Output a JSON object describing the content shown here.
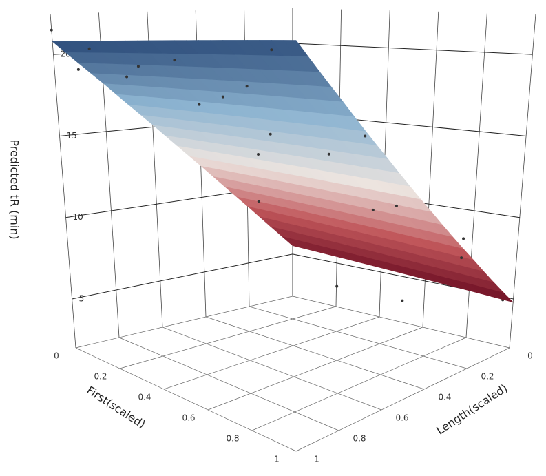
{
  "chart_data": {
    "type": "surface3d",
    "zaxis_title": "Predicted tR (min)",
    "xaxis_title": "First(scaled)",
    "yaxis_title": "Length(scaled)",
    "xlim": [
      0,
      1
    ],
    "ylim": [
      0,
      1
    ],
    "zlim": [
      2,
      22.5
    ],
    "xticks": [
      0,
      0.2,
      0.4,
      0.6,
      0.8,
      1
    ],
    "yticks": [
      0,
      0.2,
      0.4,
      0.6,
      0.8,
      1
    ],
    "zticks": [
      5,
      10,
      15,
      20
    ],
    "surface": {
      "x": [
        0,
        0.2,
        0.4,
        0.6,
        0.8,
        1
      ],
      "y": [
        0,
        0.2,
        0.4,
        0.6,
        0.8,
        1
      ],
      "z": [
        [
          5.6,
          8.93,
          12.11,
          15.15,
          18.05,
          20.8
        ],
        [
          5.44,
          8.79,
          11.99,
          15.05,
          17.97,
          20.74
        ],
        [
          5.28,
          8.65,
          11.87,
          14.95,
          17.89,
          20.68
        ],
        [
          5.12,
          8.51,
          11.75,
          14.85,
          17.81,
          20.62
        ],
        [
          4.96,
          8.37,
          11.63,
          14.75,
          17.73,
          20.56
        ],
        [
          4.8,
          8.23,
          11.51,
          14.65,
          17.65,
          20.5
        ]
      ],
      "colorscale": [
        "#6e0f24",
        "#c0565a",
        "#ece4df",
        "#8db4d1",
        "#2a4a78"
      ]
    },
    "points": {
      "color": "#333333",
      "x": [
        0,
        0,
        0.1,
        0.1,
        0.2,
        0.2,
        0.3,
        0.3,
        0.4,
        0.4,
        0.5,
        0.5,
        0.6,
        0.6,
        0.7,
        0.7,
        0.8,
        0.8,
        0.9,
        0.9,
        1,
        1,
        0.15,
        0.35,
        0.55,
        0.75,
        0.95,
        0.25,
        0.45,
        0.65,
        0.85,
        0.05
      ],
      "y": [
        1,
        0.9,
        0.8,
        0.95,
        0.6,
        0.85,
        0.7,
        0.5,
        0.9,
        0.3,
        0.6,
        0.4,
        0.8,
        0.2,
        0.55,
        0.1,
        0.7,
        0.35,
        0.15,
        0.5,
        0.05,
        0.25,
        0.3,
        0.15,
        0.05,
        0.9,
        0.65,
        0.45,
        0.75,
        0.3,
        0.95,
        0.2
      ],
      "z": [
        21.5,
        19.0,
        18.5,
        20.3,
        14.2,
        19.2,
        16.9,
        12.8,
        19.6,
        9.5,
        15.3,
        11.1,
        18.2,
        7.9,
        14.4,
        6.2,
        15.4,
        11.3,
        7.9,
        12.3,
        5.2,
        9.6,
        13.0,
        4.5,
        3.8,
        18.2,
        15.8,
        12.0,
        17.5,
        10.6,
        20.1,
        9.4
      ]
    }
  }
}
